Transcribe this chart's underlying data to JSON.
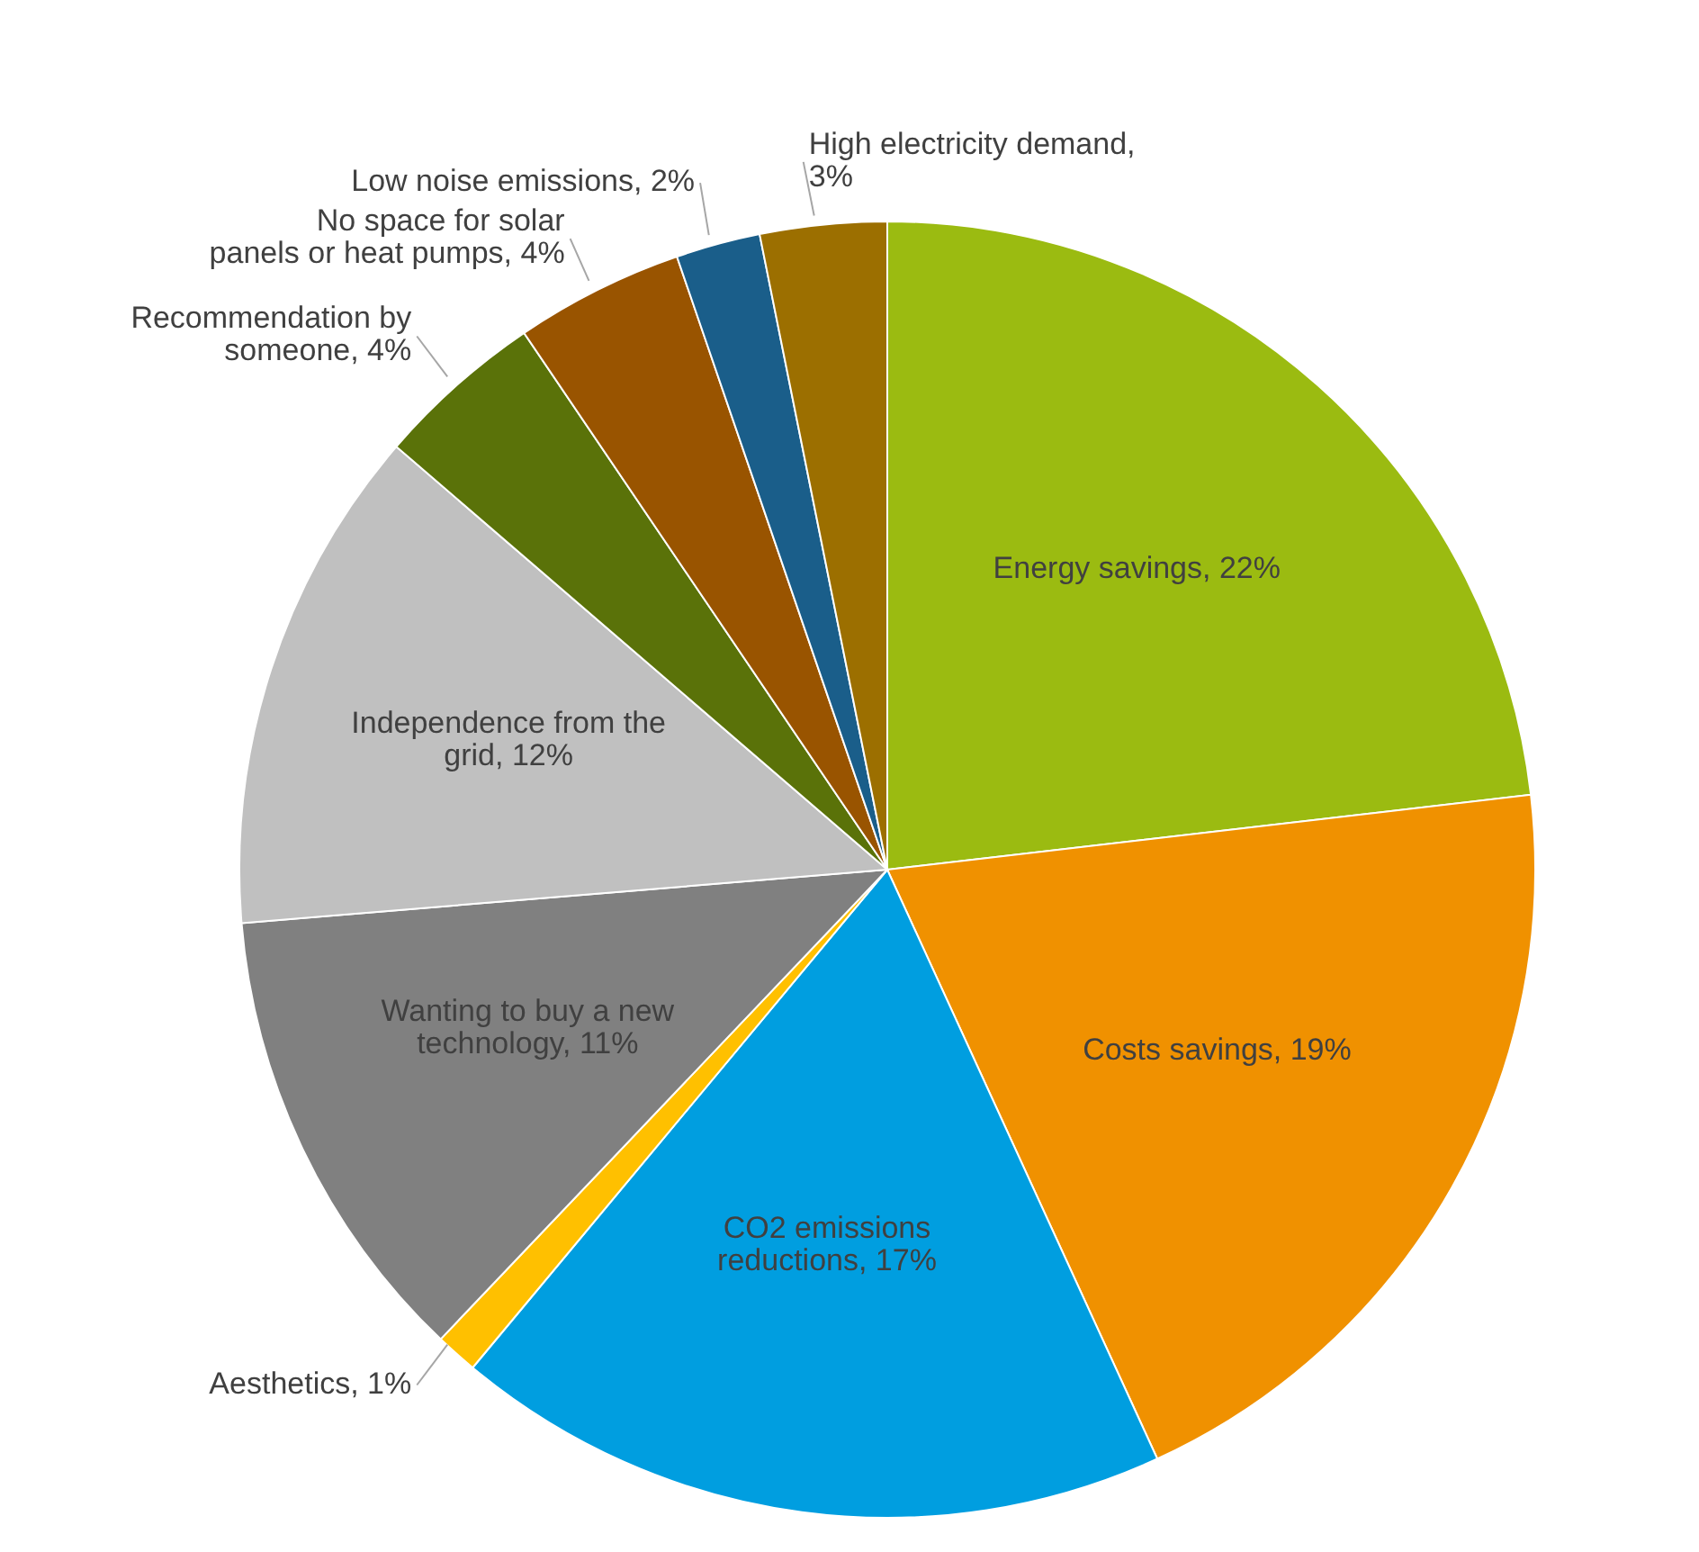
{
  "chart_data": {
    "type": "pie",
    "categories": [
      "Energy savings, 22%",
      "Costs savings, 19%",
      "CO2 emissions reductions, 17%",
      "Aesthetics, 1%",
      "Wanting to buy a new technology, 11%",
      "Independence from the grid, 12%",
      "Recommendation by someone, 4%",
      "No space for solar panels or heat pumps, 4%",
      "Low noise emissions, 2%",
      "High electricity demand, 3%"
    ],
    "values": [
      22,
      19,
      17,
      1,
      11,
      12,
      4,
      4,
      2,
      3
    ],
    "colors": [
      "#9bbb11",
      "#f09100",
      "#009ee0",
      "#ffc000",
      "#808080",
      "#c0c0c0",
      "#5a7209",
      "#995400",
      "#1a5e8a",
      "#9c6f00"
    ]
  }
}
